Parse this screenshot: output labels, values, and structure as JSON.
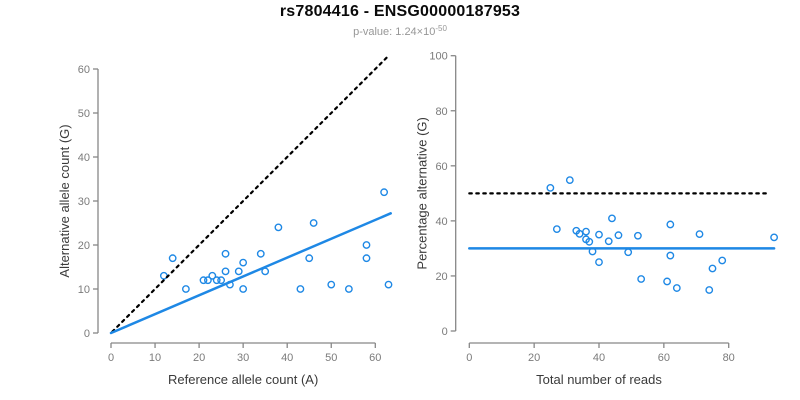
{
  "header": {
    "title": "rs7804416 - ENSG00000187953",
    "subtitle_prefix": "p-value: 1.24×10",
    "subtitle_exponent": "-50"
  },
  "colors": {
    "point_blue": "#1E88E5",
    "line_blue": "#1E88E5",
    "line_black": "#000000",
    "axis_gray": "#878787",
    "tick_label_gray": "#7b7b7b",
    "axis_title_dark": "#3a3a3a",
    "subtitle_gray": "#979797"
  },
  "chart_data": [
    {
      "id": "allele-count-scatter",
      "type": "scatter",
      "xlabel": "Reference allele count (A)",
      "ylabel": "Alternative allele count (G)",
      "xlim": [
        0,
        64
      ],
      "ylim": [
        0,
        64
      ],
      "xticks": [
        0,
        10,
        20,
        30,
        40,
        50,
        60
      ],
      "yticks": [
        0,
        10,
        20,
        30,
        40,
        50,
        60
      ],
      "grid": false,
      "legend": null,
      "points": [
        [
          12,
          13
        ],
        [
          14,
          17
        ],
        [
          17,
          10
        ],
        [
          21,
          12
        ],
        [
          22,
          12
        ],
        [
          23,
          13
        ],
        [
          24,
          12
        ],
        [
          25,
          12
        ],
        [
          26,
          14
        ],
        [
          26,
          18
        ],
        [
          27,
          11
        ],
        [
          29,
          14
        ],
        [
          30,
          10
        ],
        [
          30,
          16
        ],
        [
          34,
          18
        ],
        [
          35,
          14
        ],
        [
          38,
          24
        ],
        [
          43,
          10
        ],
        [
          45,
          17
        ],
        [
          46,
          25
        ],
        [
          50,
          11
        ],
        [
          54,
          10
        ],
        [
          58,
          17
        ],
        [
          58,
          20
        ],
        [
          62,
          32
        ],
        [
          63,
          11
        ]
      ],
      "lines": [
        {
          "name": "identity-line",
          "style": "dotted",
          "color": "#000000",
          "x1": 0.3,
          "y1": 0.3,
          "x2": 62.8,
          "y2": 62.8
        },
        {
          "name": "fit-line",
          "style": "solid",
          "color": "#1E88E5",
          "x1": 0,
          "y1": 0,
          "x2": 63.5,
          "y2": 27.2
        }
      ]
    },
    {
      "id": "percentage-alternative-scatter",
      "type": "scatter",
      "xlabel": "Total number of reads",
      "ylabel": "Percentage alternative (G)",
      "xlim": [
        0,
        95
      ],
      "ylim": [
        0,
        100
      ],
      "xticks": [
        0,
        20,
        40,
        60,
        80
      ],
      "yticks": [
        0,
        20,
        40,
        60,
        80,
        100
      ],
      "grid": false,
      "legend": null,
      "points": [
        [
          25,
          52.0
        ],
        [
          31,
          54.8
        ],
        [
          27,
          37.0
        ],
        [
          33,
          36.4
        ],
        [
          34,
          35.3
        ],
        [
          36,
          36.1
        ],
        [
          36,
          33.3
        ],
        [
          37,
          32.4
        ],
        [
          40,
          35.0
        ],
        [
          44,
          40.9
        ],
        [
          38,
          28.9
        ],
        [
          43,
          32.6
        ],
        [
          40,
          25.0
        ],
        [
          46,
          34.8
        ],
        [
          52,
          34.6
        ],
        [
          49,
          28.6
        ],
        [
          62,
          38.7
        ],
        [
          53,
          18.9
        ],
        [
          62,
          27.4
        ],
        [
          71,
          35.2
        ],
        [
          61,
          18.0
        ],
        [
          64,
          15.6
        ],
        [
          75,
          22.7
        ],
        [
          78,
          25.6
        ],
        [
          94,
          34.0
        ],
        [
          74,
          14.9
        ]
      ],
      "lines": [
        {
          "name": "fifty-percent-line",
          "style": "dotted",
          "color": "#000000",
          "x1": 0,
          "y1": 50,
          "x2": 92.3,
          "y2": 50
        },
        {
          "name": "mean-percentage-line",
          "style": "solid",
          "color": "#1E88E5",
          "x1": 0,
          "y1": 30,
          "x2": 94.0,
          "y2": 30
        }
      ]
    }
  ]
}
